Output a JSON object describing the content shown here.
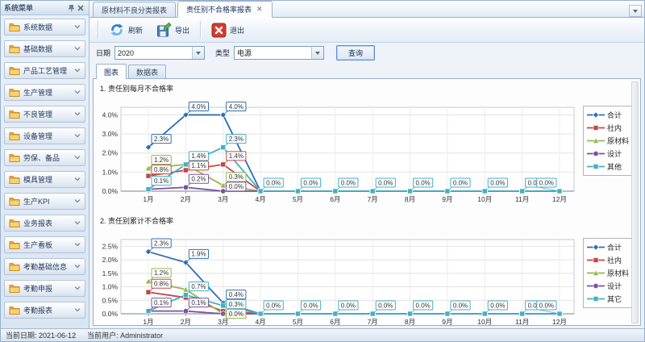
{
  "sidebar": {
    "title": "系统菜单",
    "items": [
      {
        "label": "系统数据"
      },
      {
        "label": "基础数据"
      },
      {
        "label": "产品工艺管理"
      },
      {
        "label": "生产管理"
      },
      {
        "label": "不良管理"
      },
      {
        "label": "设备管理"
      },
      {
        "label": "劳保、备品"
      },
      {
        "label": "模具管理"
      },
      {
        "label": "生产KPI"
      },
      {
        "label": "业务报表"
      },
      {
        "label": "生产看板"
      },
      {
        "label": "考勤基础信息"
      },
      {
        "label": "考勤申报"
      },
      {
        "label": "考勤报表"
      }
    ]
  },
  "tabs": [
    {
      "label": "原材料不良分类报表",
      "active": false,
      "closable": false
    },
    {
      "label": "责任别不合格率报表",
      "active": true,
      "closable": true
    }
  ],
  "toolbar": {
    "refresh_label": "刷新",
    "export_label": "导出",
    "exit_label": "退出"
  },
  "filters": {
    "date_label": "日期",
    "date_value": "2020",
    "type_label": "类型",
    "type_value": "电源",
    "query_label": "查询"
  },
  "view_tabs": [
    {
      "label": "图表",
      "active": true
    },
    {
      "label": "数据表",
      "active": false
    }
  ],
  "statusbar": {
    "date_label": "当前日期:",
    "date_value": "2021-06-12",
    "user_label": "当前用户:",
    "user_value": "Administrator"
  },
  "chart_data": [
    {
      "type": "line",
      "title": "1. 责任别每月不合格率",
      "x_labels": [
        "1月",
        "2月",
        "3月",
        "4月",
        "5月",
        "6月",
        "7月",
        "8月",
        "9月",
        "10月",
        "11月",
        "12月"
      ],
      "y_ticks": [
        0,
        1,
        2,
        3,
        4
      ],
      "ylim": [
        0,
        4.4
      ],
      "grid": true,
      "legend_position": "right",
      "series": [
        {
          "name": "合计",
          "color": "#2e6db4",
          "marker": "diamond",
          "values": [
            2.3,
            4.0,
            4.0,
            0,
            0,
            0,
            0,
            0,
            0,
            0,
            0,
            0
          ],
          "labels": [
            "2.3%",
            "4.0%",
            "4.0%",
            null,
            null,
            null,
            null,
            null,
            null,
            null,
            null,
            null
          ]
        },
        {
          "name": "社内",
          "color": "#c04846",
          "marker": "square",
          "values": [
            0.8,
            1.1,
            1.4,
            0,
            0,
            0,
            0,
            0,
            0,
            0,
            0,
            0
          ],
          "labels": [
            "0.8%",
            "1.1%",
            "1.4%",
            null,
            null,
            null,
            null,
            null,
            null,
            null,
            null,
            null
          ]
        },
        {
          "name": "原材料",
          "color": "#94b84a",
          "marker": "triangle",
          "values": [
            1.2,
            1.4,
            0.3,
            0,
            0,
            0,
            0,
            0,
            0,
            0,
            0,
            0
          ],
          "labels": [
            "1.2%",
            null,
            "0.3%",
            null,
            null,
            null,
            null,
            null,
            null,
            null,
            null,
            null
          ]
        },
        {
          "name": "设计",
          "color": "#7a52a0",
          "marker": "circle",
          "values": [
            0.1,
            0.2,
            0.0,
            0,
            0,
            0,
            0,
            0,
            0,
            0,
            0,
            0
          ],
          "labels": [
            null,
            "0.2%",
            "0.0%",
            null,
            null,
            null,
            null,
            null,
            null,
            null,
            null,
            null
          ]
        },
        {
          "name": "其他",
          "color": "#43afc8",
          "marker": "square",
          "values": [
            0.1,
            1.4,
            2.3,
            0,
            0,
            0,
            0,
            0,
            0,
            0,
            0,
            0
          ],
          "labels": [
            "0.1%",
            "1.4%",
            "2.3%",
            "0.0%",
            "0.0%",
            "0.0%",
            "0.0%",
            "0.0%",
            "0.0%",
            "0.0%",
            "0.0%",
            "0.0%"
          ]
        }
      ]
    },
    {
      "type": "line",
      "title": "2. 责任别累计不合格率",
      "x_labels": [
        "1月",
        "2月",
        "3月",
        "4月",
        "5月",
        "6月",
        "7月",
        "8月",
        "9月",
        "10月",
        "11月",
        "12月"
      ],
      "y_ticks": [
        0,
        0.5,
        1,
        1.5,
        2,
        2.5
      ],
      "ylim": [
        0,
        2.75
      ],
      "grid": true,
      "legend_position": "right",
      "series": [
        {
          "name": "合计",
          "color": "#2e6db4",
          "marker": "diamond",
          "values": [
            2.3,
            1.9,
            0.4,
            0,
            0,
            0,
            0,
            0,
            0,
            0,
            0,
            0
          ],
          "labels": [
            "2.3%",
            "1.9%",
            "0.4%",
            null,
            null,
            null,
            null,
            null,
            null,
            null,
            null,
            null
          ]
        },
        {
          "name": "社内",
          "color": "#c04846",
          "marker": "square",
          "values": [
            0.8,
            0.6,
            0.1,
            0,
            0,
            0,
            0,
            0,
            0,
            0,
            0,
            0
          ],
          "labels": [
            "0.8%",
            null,
            null,
            null,
            null,
            null,
            null,
            null,
            null,
            null,
            null,
            null
          ]
        },
        {
          "name": "原材料",
          "color": "#94b84a",
          "marker": "triangle",
          "values": [
            1.2,
            0.9,
            0.0,
            0,
            0,
            0,
            0,
            0,
            0,
            0,
            0,
            0
          ],
          "labels": [
            "1.2%",
            null,
            "0.0%",
            null,
            null,
            null,
            null,
            null,
            null,
            null,
            null,
            null
          ]
        },
        {
          "name": "设计",
          "color": "#7a52a0",
          "marker": "circle",
          "values": [
            0.1,
            0.1,
            0.0,
            0,
            0,
            0,
            0,
            0,
            0,
            0,
            0,
            0
          ],
          "labels": [
            "0.1%",
            "0.1%",
            null,
            null,
            null,
            null,
            null,
            null,
            null,
            null,
            null,
            null
          ]
        },
        {
          "name": "其它",
          "color": "#43afc8",
          "marker": "square",
          "values": [
            0.1,
            0.7,
            0.3,
            0,
            0,
            0,
            0,
            0,
            0,
            0,
            0,
            0
          ],
          "labels": [
            null,
            "0.7%",
            "0.3%",
            "0.0%",
            "0.0%",
            "0.0%",
            "0.0%",
            "0.0%",
            "0.0%",
            "0.0%",
            "0.0%",
            "0.0%"
          ]
        }
      ]
    }
  ]
}
